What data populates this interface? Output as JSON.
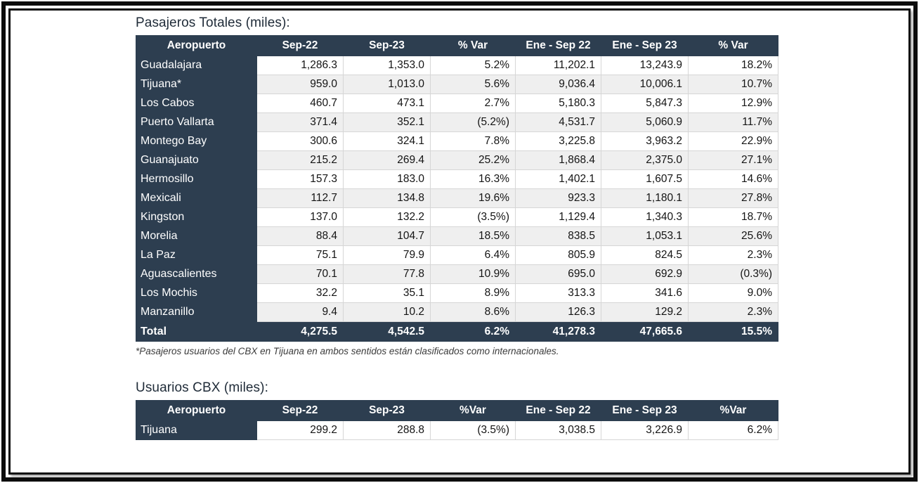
{
  "report": {
    "colors": {
      "header_bg": "#2d3e50",
      "stripe_bg": "#efefef",
      "grid_line": "#d6d6d6",
      "frame": "#0d0d0d",
      "title_text": "#1f2b38"
    },
    "sections": [
      {
        "title": "Pasajeros Totales (miles):",
        "columns": [
          "Aeropuerto",
          "Sep-22",
          "Sep-23",
          "% Var",
          "Ene - Sep 22",
          "Ene - Sep 23",
          "% Var"
        ],
        "rows": [
          [
            "Guadalajara",
            "1,286.3",
            "1,353.0",
            "5.2%",
            "11,202.1",
            "13,243.9",
            "18.2%"
          ],
          [
            "Tijuana*",
            "959.0",
            "1,013.0",
            "5.6%",
            "9,036.4",
            "10,006.1",
            "10.7%"
          ],
          [
            "Los Cabos",
            "460.7",
            "473.1",
            "2.7%",
            "5,180.3",
            "5,847.3",
            "12.9%"
          ],
          [
            "Puerto Vallarta",
            "371.4",
            "352.1",
            "(5.2%)",
            "4,531.7",
            "5,060.9",
            "11.7%"
          ],
          [
            "Montego Bay",
            "300.6",
            "324.1",
            "7.8%",
            "3,225.8",
            "3,963.2",
            "22.9%"
          ],
          [
            "Guanajuato",
            "215.2",
            "269.4",
            "25.2%",
            "1,868.4",
            "2,375.0",
            "27.1%"
          ],
          [
            "Hermosillo",
            "157.3",
            "183.0",
            "16.3%",
            "1,402.1",
            "1,607.5",
            "14.6%"
          ],
          [
            "Mexicali",
            "112.7",
            "134.8",
            "19.6%",
            "923.3",
            "1,180.1",
            "27.8%"
          ],
          [
            "Kingston",
            "137.0",
            "132.2",
            "(3.5%)",
            "1,129.4",
            "1,340.3",
            "18.7%"
          ],
          [
            "Morelia",
            "88.4",
            "104.7",
            "18.5%",
            "838.5",
            "1,053.1",
            "25.6%"
          ],
          [
            "La Paz",
            "75.1",
            "79.9",
            "6.4%",
            "805.9",
            "824.5",
            "2.3%"
          ],
          [
            "Aguascalientes",
            "70.1",
            "77.8",
            "10.9%",
            "695.0",
            "692.9",
            "(0.3%)"
          ],
          [
            "Los Mochis",
            "32.2",
            "35.1",
            "8.9%",
            "313.3",
            "341.6",
            "9.0%"
          ],
          [
            "Manzanillo",
            "9.4",
            "10.2",
            "8.6%",
            "126.3",
            "129.2",
            "2.3%"
          ]
        ],
        "total_row": [
          "Total",
          "4,275.5",
          "4,542.5",
          "6.2%",
          "41,278.3",
          "47,665.6",
          "15.5%"
        ],
        "footnote": "*Pasajeros usuarios del CBX en Tijuana en ambos sentidos están clasificados como internacionales."
      },
      {
        "title": "Usuarios CBX (miles):",
        "columns": [
          "Aeropuerto",
          "Sep-22",
          "Sep-23",
          "%Var",
          "Ene - Sep 22",
          "Ene - Sep 23",
          "%Var"
        ],
        "rows": [
          [
            "Tijuana",
            "299.2",
            "288.8",
            "(3.5%)",
            "3,038.5",
            "3,226.9",
            "6.2%"
          ]
        ]
      }
    ]
  }
}
